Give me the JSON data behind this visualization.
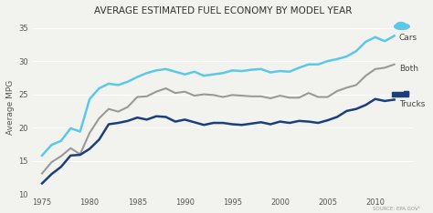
{
  "title": "AVERAGE ESTIMATED FUEL ECONOMY BY MODEL YEAR",
  "ylabel": "Average MPG",
  "source": "SOURCE: EPA.GOV¹",
  "xlim": [
    1974,
    2014
  ],
  "ylim": [
    10,
    36
  ],
  "yticks": [
    10,
    15,
    20,
    25,
    30,
    35
  ],
  "xticks": [
    1975,
    1980,
    1985,
    1990,
    1995,
    2000,
    2005,
    2010
  ],
  "years": [
    1975,
    1976,
    1977,
    1978,
    1979,
    1980,
    1981,
    1982,
    1983,
    1984,
    1985,
    1986,
    1987,
    1988,
    1989,
    1990,
    1991,
    1992,
    1993,
    1994,
    1995,
    1996,
    1997,
    1998,
    1999,
    2000,
    2001,
    2002,
    2003,
    2004,
    2005,
    2006,
    2007,
    2008,
    2009,
    2010,
    2011,
    2012
  ],
  "cars": [
    15.8,
    17.4,
    18.0,
    19.9,
    19.4,
    24.3,
    25.9,
    26.6,
    26.4,
    26.9,
    27.6,
    28.2,
    28.6,
    28.8,
    28.4,
    28.0,
    28.4,
    27.8,
    28.0,
    28.2,
    28.6,
    28.5,
    28.7,
    28.8,
    28.3,
    28.5,
    28.4,
    29.0,
    29.5,
    29.5,
    30.0,
    30.3,
    30.7,
    31.5,
    32.9,
    33.6,
    33.0,
    33.8
  ],
  "both": [
    13.1,
    14.8,
    15.7,
    16.9,
    16.0,
    19.2,
    21.4,
    22.8,
    22.4,
    23.1,
    24.6,
    24.7,
    25.4,
    25.9,
    25.2,
    25.4,
    24.8,
    25.0,
    24.9,
    24.6,
    24.9,
    24.8,
    24.7,
    24.7,
    24.4,
    24.8,
    24.5,
    24.5,
    25.2,
    24.6,
    24.6,
    25.5,
    26.0,
    26.4,
    27.8,
    28.8,
    29.0,
    29.5
  ],
  "trucks": [
    11.6,
    13.0,
    14.1,
    15.8,
    15.9,
    16.8,
    18.2,
    20.5,
    20.7,
    21.0,
    21.5,
    21.2,
    21.7,
    21.6,
    20.9,
    21.2,
    20.8,
    20.4,
    20.7,
    20.7,
    20.5,
    20.4,
    20.6,
    20.8,
    20.5,
    20.9,
    20.7,
    21.0,
    20.9,
    20.7,
    21.1,
    21.6,
    22.5,
    22.8,
    23.4,
    24.3,
    24.0,
    24.2
  ],
  "cars_color": "#5bc8e8",
  "both_color": "#999999",
  "trucks_color": "#1a3f7a",
  "bg_color": "#f2f2ee",
  "grid_color": "#ffffff",
  "title_fontsize": 7.5,
  "label_fontsize": 6.5,
  "tick_fontsize": 6
}
